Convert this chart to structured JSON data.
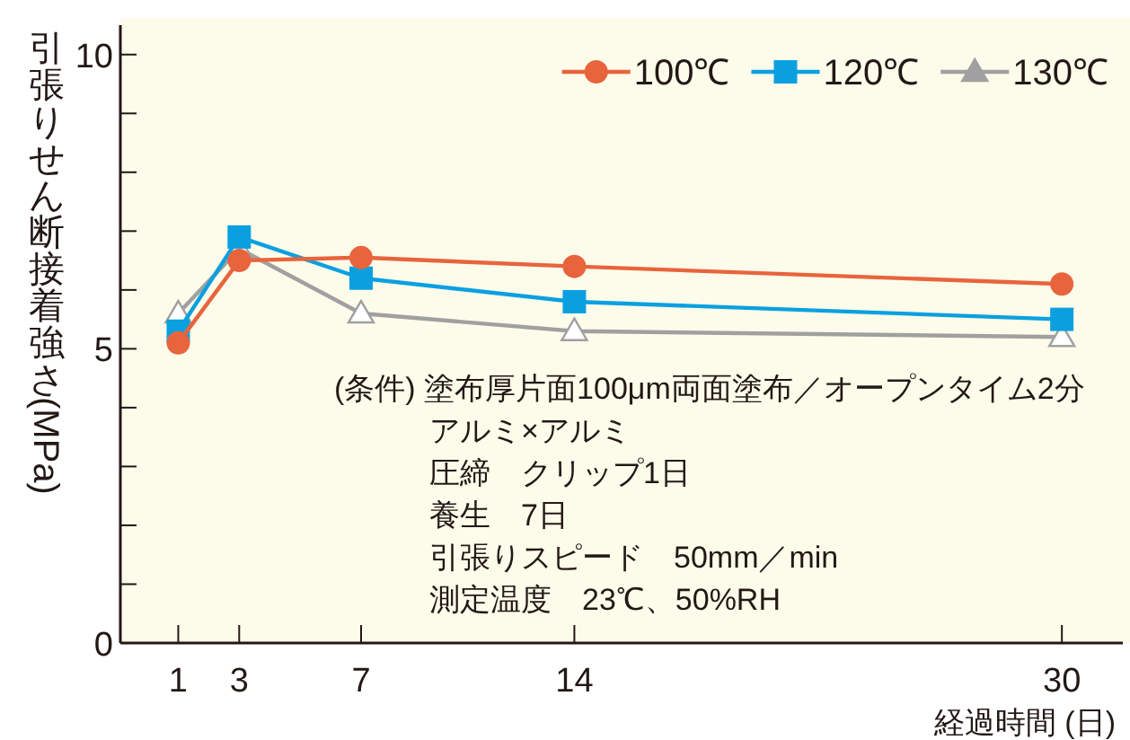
{
  "chart_data": {
    "type": "line",
    "xlabel": "経過時間 (日)",
    "ylabel": "引張りせん断接着強さ(MPa)",
    "x": [
      1,
      3,
      7,
      14,
      30
    ],
    "xlim": [
      -0.9,
      32
    ],
    "xticks": [
      1,
      3,
      7,
      14,
      30
    ],
    "ylim": [
      0,
      10.5
    ],
    "yticks": [
      0,
      {
        "value": 1,
        "label": null
      },
      {
        "value": 2,
        "label": null
      },
      {
        "value": 3,
        "label": null
      },
      {
        "value": 4,
        "label": null
      },
      5,
      {
        "value": 6,
        "label": null
      },
      {
        "value": 7,
        "label": null
      },
      {
        "value": 8,
        "label": null
      },
      {
        "value": 9,
        "label": null
      },
      10
    ],
    "grid": false,
    "legend": "top right",
    "line_style": "solid",
    "series": [
      {
        "name": "100℃",
        "color": "#e8643c",
        "marker": "circle",
        "values": [
          5.1,
          6.5,
          6.55,
          6.4,
          6.1
        ]
      },
      {
        "name": "120℃",
        "color": "#0aa0e0",
        "marker": "square",
        "values": [
          5.3,
          6.9,
          6.2,
          5.8,
          5.5
        ]
      },
      {
        "name": "130℃",
        "color": "#a0a0a0",
        "marker": "triangle",
        "values": [
          5.6,
          6.7,
          5.6,
          5.3,
          5.2
        ]
      }
    ],
    "annotations": [
      "(条件) 塗布厚片面100μm両面塗布／オープンタイム2分",
      "アルミ×アルミ",
      "圧締　クリップ1日",
      "養生　7日",
      "引張りスピード　50mm／min",
      "測定温度　23℃、50%RH"
    ]
  }
}
